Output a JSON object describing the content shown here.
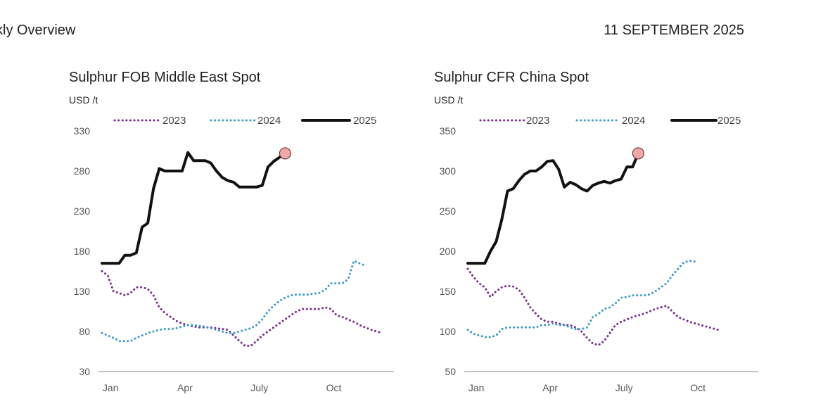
{
  "header": {
    "left": "kly Overview",
    "right": "11 SEPTEMBER 2025"
  },
  "colors": {
    "s2023": "#7a2a8c",
    "s2024": "#3a9ac8",
    "s2025": "#111111",
    "marker": "#f2a6a6",
    "axis": "#9a9a9a"
  },
  "chart_data": [
    {
      "type": "line",
      "title": "Sulphur FOB Middle East Spot",
      "unit": "USD /t",
      "ylim": [
        30,
        330
      ],
      "yticks": [
        30,
        80,
        130,
        180,
        230,
        280,
        330
      ],
      "xlim": [
        1,
        52
      ],
      "xticks": [
        {
          "label": "Jan",
          "x": 2.5
        },
        {
          "label": "Apr",
          "x": 15.5
        },
        {
          "label": "July",
          "x": 28.5
        },
        {
          "label": "Oct",
          "x": 41.5
        }
      ],
      "legend_position": "top",
      "series": [
        {
          "name": "2023",
          "style": "dotted",
          "points": [
            [
              1,
              155
            ],
            [
              2,
              150
            ],
            [
              3,
              130
            ],
            [
              4,
              128
            ],
            [
              5,
              125
            ],
            [
              6,
              128
            ],
            [
              7,
              135
            ],
            [
              8,
              135
            ],
            [
              9,
              133
            ],
            [
              10,
              125
            ],
            [
              11,
              110
            ],
            [
              12,
              103
            ],
            [
              13,
              98
            ],
            [
              14,
              93
            ],
            [
              15,
              90
            ],
            [
              16,
              88
            ],
            [
              17,
              86
            ],
            [
              18,
              85
            ],
            [
              19,
              85
            ],
            [
              20,
              85
            ],
            [
              21,
              84
            ],
            [
              22,
              83
            ],
            [
              23,
              82
            ],
            [
              24,
              75
            ],
            [
              25,
              68
            ],
            [
              26,
              62
            ],
            [
              27,
              62
            ],
            [
              28,
              68
            ],
            [
              29,
              75
            ],
            [
              30,
              80
            ],
            [
              31,
              85
            ],
            [
              32,
              90
            ],
            [
              33,
              95
            ],
            [
              34,
              100
            ],
            [
              35,
              105
            ],
            [
              36,
              108
            ],
            [
              37,
              108
            ],
            [
              38,
              108
            ],
            [
              39,
              108
            ],
            [
              40,
              110
            ],
            [
              41,
              108
            ],
            [
              42,
              100
            ],
            [
              43,
              98
            ],
            [
              44,
              95
            ],
            [
              45,
              92
            ],
            [
              46,
              88
            ],
            [
              47,
              85
            ],
            [
              48,
              82
            ],
            [
              49,
              80
            ],
            [
              50,
              78
            ]
          ]
        },
        {
          "name": "2024",
          "style": "dotted",
          "points": [
            [
              1,
              78
            ],
            [
              2,
              75
            ],
            [
              3,
              72
            ],
            [
              4,
              68
            ],
            [
              5,
              68
            ],
            [
              6,
              68
            ],
            [
              7,
              72
            ],
            [
              8,
              75
            ],
            [
              9,
              78
            ],
            [
              10,
              80
            ],
            [
              11,
              82
            ],
            [
              12,
              83
            ],
            [
              13,
              83
            ],
            [
              14,
              84
            ],
            [
              15,
              86
            ],
            [
              16,
              88
            ],
            [
              17,
              88
            ],
            [
              18,
              87
            ],
            [
              19,
              86
            ],
            [
              20,
              84
            ],
            [
              21,
              82
            ],
            [
              22,
              80
            ],
            [
              23,
              78
            ],
            [
              24,
              78
            ],
            [
              25,
              80
            ],
            [
              26,
              82
            ],
            [
              27,
              84
            ],
            [
              28,
              88
            ],
            [
              29,
              95
            ],
            [
              30,
              105
            ],
            [
              31,
              112
            ],
            [
              32,
              118
            ],
            [
              33,
              122
            ],
            [
              34,
              125
            ],
            [
              35,
              126
            ],
            [
              36,
              126
            ],
            [
              37,
              126
            ],
            [
              38,
              127
            ],
            [
              39,
              128
            ],
            [
              40,
              132
            ],
            [
              41,
              140
            ],
            [
              42,
              140
            ],
            [
              43,
              140
            ],
            [
              44,
              145
            ],
            [
              45,
              168
            ],
            [
              46,
              165
            ],
            [
              47,
              162
            ]
          ]
        },
        {
          "name": "2025",
          "style": "solid",
          "points": [
            [
              1,
              165
            ],
            [
              2,
              165
            ],
            [
              3,
              165
            ],
            [
              4,
              165
            ],
            [
              5,
              175
            ],
            [
              6,
              175
            ],
            [
              7,
              178
            ],
            [
              8,
              210
            ],
            [
              9,
              215
            ],
            [
              10,
              258
            ],
            [
              11,
              283
            ],
            [
              12,
              280
            ],
            [
              13,
              280
            ],
            [
              14,
              280
            ],
            [
              15,
              280
            ],
            [
              16,
              303
            ],
            [
              17,
              293
            ],
            [
              18,
              293
            ],
            [
              19,
              293
            ],
            [
              20,
              290
            ],
            [
              21,
              280
            ],
            [
              22,
              272
            ],
            [
              23,
              268
            ],
            [
              24,
              266
            ],
            [
              25,
              260
            ],
            [
              26,
              260
            ],
            [
              27,
              260
            ],
            [
              28,
              260
            ],
            [
              29,
              262
            ],
            [
              30,
              285
            ],
            [
              31,
              292
            ],
            [
              32,
              297
            ],
            [
              33,
              302
            ]
          ]
        }
      ],
      "marker_point": [
        33,
        302
      ]
    },
    {
      "type": "line",
      "title": "Sulphur CFR China Spot",
      "unit": "USD /t",
      "ylim": [
        50,
        350
      ],
      "yticks": [
        50,
        100,
        150,
        200,
        250,
        300,
        350
      ],
      "xlim": [
        1,
        52
      ],
      "xticks": [
        {
          "label": "Jan",
          "x": 2.5
        },
        {
          "label": "Apr",
          "x": 15.5
        },
        {
          "label": "July",
          "x": 28.5
        },
        {
          "label": "Oct",
          "x": 41.5
        }
      ],
      "legend_position": "top",
      "series": [
        {
          "name": "2023",
          "style": "dotted",
          "points": [
            [
              1,
              178
            ],
            [
              2,
              168
            ],
            [
              3,
              160
            ],
            [
              4,
              155
            ],
            [
              5,
              143
            ],
            [
              6,
              150
            ],
            [
              7,
              155
            ],
            [
              8,
              157
            ],
            [
              9,
              156
            ],
            [
              10,
              152
            ],
            [
              11,
              142
            ],
            [
              12,
              130
            ],
            [
              13,
              122
            ],
            [
              14,
              115
            ],
            [
              15,
              112
            ],
            [
              16,
              112
            ],
            [
              17,
              110
            ],
            [
              18,
              108
            ],
            [
              19,
              108
            ],
            [
              20,
              105
            ],
            [
              21,
              100
            ],
            [
              22,
              92
            ],
            [
              23,
              85
            ],
            [
              24,
              83
            ],
            [
              25,
              88
            ],
            [
              26,
              98
            ],
            [
              27,
              108
            ],
            [
              28,
              112
            ],
            [
              29,
              115
            ],
            [
              30,
              118
            ],
            [
              31,
              120
            ],
            [
              32,
              122
            ],
            [
              33,
              125
            ],
            [
              34,
              128
            ],
            [
              35,
              130
            ],
            [
              36,
              132
            ],
            [
              37,
              125
            ],
            [
              38,
              118
            ],
            [
              39,
              115
            ],
            [
              40,
              112
            ],
            [
              41,
              110
            ],
            [
              42,
              108
            ],
            [
              43,
              106
            ],
            [
              44,
              104
            ],
            [
              45,
              102
            ]
          ]
        },
        {
          "name": "2024",
          "style": "dotted",
          "points": [
            [
              1,
              102
            ],
            [
              2,
              97
            ],
            [
              3,
              95
            ],
            [
              4,
              93
            ],
            [
              5,
              93
            ],
            [
              6,
              95
            ],
            [
              7,
              103
            ],
            [
              8,
              105
            ],
            [
              9,
              105
            ],
            [
              10,
              105
            ],
            [
              11,
              105
            ],
            [
              12,
              105
            ],
            [
              13,
              105
            ],
            [
              14,
              108
            ],
            [
              15,
              108
            ],
            [
              16,
              110
            ],
            [
              17,
              108
            ],
            [
              18,
              108
            ],
            [
              19,
              105
            ],
            [
              20,
              103
            ],
            [
              21,
              103
            ],
            [
              22,
              105
            ],
            [
              23,
              118
            ],
            [
              24,
              122
            ],
            [
              25,
              128
            ],
            [
              26,
              130
            ],
            [
              27,
              135
            ],
            [
              28,
              142
            ],
            [
              29,
              143
            ],
            [
              30,
              145
            ],
            [
              31,
              145
            ],
            [
              32,
              145
            ],
            [
              33,
              146
            ],
            [
              34,
              150
            ],
            [
              35,
              155
            ],
            [
              36,
              160
            ],
            [
              37,
              170
            ],
            [
              38,
              178
            ],
            [
              39,
              186
            ],
            [
              40,
              188
            ],
            [
              41,
              187
            ]
          ]
        },
        {
          "name": "2025",
          "style": "solid",
          "points": [
            [
              1,
              185
            ],
            [
              2,
              185
            ],
            [
              3,
              185
            ],
            [
              4,
              185
            ],
            [
              5,
              200
            ],
            [
              6,
              212
            ],
            [
              7,
              240
            ],
            [
              8,
              275
            ],
            [
              9,
              278
            ],
            [
              10,
              288
            ],
            [
              11,
              296
            ],
            [
              12,
              300
            ],
            [
              13,
              300
            ],
            [
              14,
              305
            ],
            [
              15,
              312
            ],
            [
              16,
              313
            ],
            [
              17,
              302
            ],
            [
              18,
              280
            ],
            [
              19,
              286
            ],
            [
              20,
              283
            ],
            [
              21,
              278
            ],
            [
              22,
              275
            ],
            [
              23,
              282
            ],
            [
              24,
              285
            ],
            [
              25,
              287
            ],
            [
              26,
              285
            ],
            [
              27,
              288
            ],
            [
              28,
              290
            ],
            [
              29,
              305
            ],
            [
              30,
              305
            ],
            [
              31,
              322
            ]
          ]
        }
      ],
      "marker_point": [
        31,
        322
      ]
    }
  ]
}
